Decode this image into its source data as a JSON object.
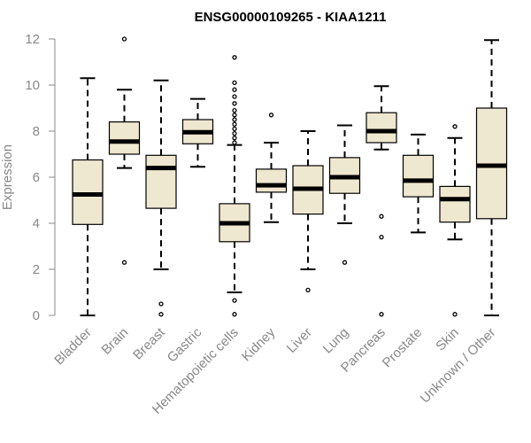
{
  "chart_data": {
    "type": "box",
    "title": "ENSG00000109265 - KIAA1211",
    "xlabel": "",
    "ylabel": "Expression",
    "ylim": [
      0,
      12
    ],
    "yticks": [
      0,
      2,
      4,
      6,
      8,
      10,
      12
    ],
    "box_color": "#efe8d0",
    "categories": [
      "Bladder",
      "Brain",
      "Breast",
      "Gastric",
      "Hematopoietic cells",
      "Kidney",
      "Liver",
      "Lung",
      "Pancreas",
      "Prostate",
      "Skin",
      "Unknown / Other"
    ],
    "boxes": [
      {
        "min": 0.0,
        "q1": 3.95,
        "median": 5.25,
        "q3": 6.75,
        "max": 10.3,
        "outliers": []
      },
      {
        "min": 6.4,
        "q1": 7.0,
        "median": 7.55,
        "q3": 8.4,
        "max": 9.8,
        "outliers": [
          2.3,
          12.0
        ]
      },
      {
        "min": 2.0,
        "q1": 4.65,
        "median": 6.4,
        "q3": 6.95,
        "max": 10.2,
        "outliers": [
          0.5,
          0.05
        ]
      },
      {
        "min": 6.45,
        "q1": 7.45,
        "median": 7.95,
        "q3": 8.5,
        "max": 9.4,
        "outliers": []
      },
      {
        "min": 1.0,
        "q1": 3.2,
        "median": 4.0,
        "q3": 4.85,
        "max": 7.4,
        "outliers": [
          0.65,
          0.05,
          7.5,
          7.7,
          7.9,
          8.1,
          8.3,
          8.5,
          8.7,
          8.9,
          9.2,
          9.5,
          9.8,
          10.1,
          11.2
        ]
      },
      {
        "min": 4.05,
        "q1": 5.35,
        "median": 5.65,
        "q3": 6.35,
        "max": 7.5,
        "outliers": [
          8.7
        ]
      },
      {
        "min": 2.0,
        "q1": 4.4,
        "median": 5.5,
        "q3": 6.5,
        "max": 8.0,
        "outliers": [
          1.1
        ]
      },
      {
        "min": 4.0,
        "q1": 5.3,
        "median": 6.0,
        "q3": 6.85,
        "max": 8.25,
        "outliers": [
          2.3
        ]
      },
      {
        "min": 7.2,
        "q1": 7.5,
        "median": 8.0,
        "q3": 8.8,
        "max": 9.95,
        "outliers": [
          4.3,
          3.4,
          0.05
        ]
      },
      {
        "min": 3.6,
        "q1": 5.15,
        "median": 5.85,
        "q3": 6.95,
        "max": 7.85,
        "outliers": []
      },
      {
        "min": 3.3,
        "q1": 4.05,
        "median": 5.05,
        "q3": 5.6,
        "max": 7.7,
        "outliers": [
          8.2,
          0.05
        ]
      },
      {
        "min": 0.0,
        "q1": 4.2,
        "median": 6.5,
        "q3": 9.0,
        "max": 11.95,
        "outliers": []
      }
    ]
  }
}
